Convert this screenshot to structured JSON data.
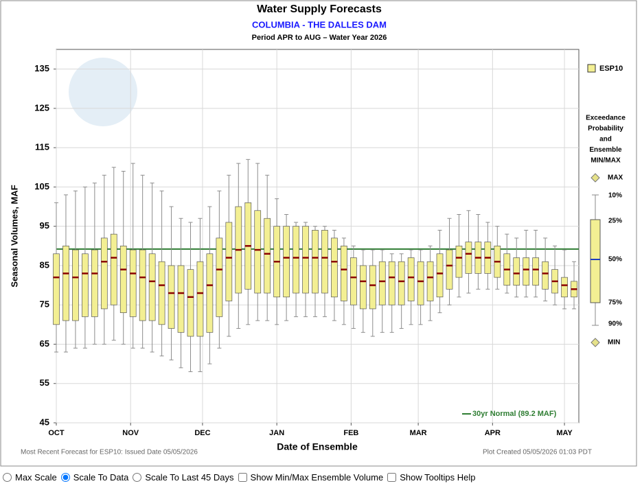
{
  "chart_data": {
    "type": "boxplot",
    "title": "Water Supply Forecasts",
    "subtitle": "COLUMBIA - THE DALLES DAM",
    "period": "Period  APR to AUG  –  Water Year 2026",
    "y_label": "Seasonal Volumes, MAF",
    "x_label": "Date of Ensemble",
    "footer_left": "Most Recent Forecast for ESP10: Issued Date 05/05/2026",
    "footer_right": "Plot Created  05/05/2026 01:03 PDT",
    "xlim": [
      0,
      218
    ],
    "xticks": [
      {
        "value": 0,
        "label": "OCT"
      },
      {
        "value": 31,
        "label": "NOV"
      },
      {
        "value": 61,
        "label": "DEC"
      },
      {
        "value": 92,
        "label": "JAN"
      },
      {
        "value": 123,
        "label": "FEB"
      },
      {
        "value": 151,
        "label": "MAR"
      },
      {
        "value": 182,
        "label": "APR"
      },
      {
        "value": 212,
        "label": "MAY"
      }
    ],
    "ylim": [
      45,
      140
    ],
    "yticks": [
      45,
      55,
      65,
      75,
      85,
      95,
      105,
      115,
      125,
      135
    ],
    "grid": true,
    "box_color": "#f3ef93",
    "whisker_color": "#8c8c8c",
    "median_color": "#8b0000",
    "legend_name": "ESP10",
    "legend_title": [
      "Exceedance",
      "Probability",
      "and",
      "Ensemble",
      "MIN/MAX"
    ],
    "legend_max": "MAX",
    "legend_min": "MIN",
    "legend_median_color": "#1f3fbf",
    "normal": {
      "value": 89.2,
      "label": "30yr Normal (89.2 MAF)",
      "color": "#2e7d32"
    },
    "x": [
      0,
      4,
      8,
      12,
      16,
      20,
      24,
      28,
      32,
      36,
      40,
      44,
      48,
      52,
      56,
      60,
      64,
      68,
      72,
      76,
      80,
      84,
      88,
      92,
      96,
      100,
      104,
      108,
      112,
      116,
      120,
      124,
      128,
      132,
      136,
      140,
      144,
      148,
      152,
      156,
      160,
      164,
      168,
      172,
      176,
      180,
      184,
      188,
      192,
      196,
      200,
      204,
      208,
      212,
      216
    ],
    "series": [
      {
        "name": "10%",
        "values": [
          101,
          103,
          104,
          105,
          106,
          108,
          110,
          109,
          111,
          108,
          106,
          104,
          100,
          97,
          96,
          97,
          100,
          104,
          108,
          111,
          112,
          111,
          108,
          102,
          98,
          96,
          96,
          95,
          95,
          94,
          92,
          90,
          89,
          89,
          89,
          88,
          88,
          89,
          89,
          90,
          94,
          97,
          98,
          99,
          98,
          96,
          95,
          93,
          92,
          94,
          94,
          92,
          90,
          89,
          86
        ]
      },
      {
        "name": "25%",
        "values": [
          88,
          90,
          89,
          88,
          89,
          92,
          93,
          90,
          89,
          89,
          88,
          86,
          85,
          85,
          84,
          86,
          88,
          92,
          96,
          100,
          101,
          99,
          97,
          95,
          95,
          95,
          95,
          94,
          94,
          92,
          90,
          87,
          85,
          85,
          86,
          86,
          86,
          87,
          86,
          86,
          88,
          89,
          90,
          91,
          91,
          91,
          90,
          88,
          87,
          87,
          87,
          86,
          84,
          82,
          81
        ]
      },
      {
        "name": "50%",
        "values": [
          82,
          83,
          82,
          83,
          83,
          86,
          87,
          84,
          83,
          82,
          81,
          80,
          78,
          78,
          77,
          78,
          80,
          84,
          87,
          89,
          90,
          89,
          88,
          86,
          87,
          87,
          87,
          87,
          87,
          86,
          84,
          82,
          81,
          80,
          81,
          82,
          81,
          82,
          81,
          82,
          83,
          85,
          87,
          88,
          87,
          87,
          86,
          84,
          83,
          84,
          84,
          83,
          81,
          80,
          79
        ]
      },
      {
        "name": "75%",
        "values": [
          70,
          71,
          71,
          72,
          72,
          74,
          75,
          73,
          72,
          71,
          71,
          70,
          69,
          68,
          67,
          67,
          68,
          72,
          76,
          78,
          79,
          78,
          78,
          77,
          77,
          78,
          78,
          78,
          78,
          77,
          76,
          75,
          74,
          74,
          75,
          75,
          75,
          76,
          75,
          76,
          77,
          79,
          82,
          83,
          83,
          83,
          82,
          80,
          80,
          80,
          80,
          79,
          78,
          77,
          77
        ]
      },
      {
        "name": "90%",
        "values": [
          63,
          63,
          64,
          64,
          65,
          65,
          66,
          65,
          64,
          64,
          63,
          62,
          61,
          59,
          58,
          58,
          60,
          64,
          67,
          69,
          70,
          71,
          71,
          70,
          71,
          72,
          72,
          72,
          72,
          71,
          70,
          69,
          68,
          67,
          68,
          68,
          69,
          70,
          70,
          71,
          73,
          75,
          77,
          78,
          79,
          79,
          79,
          78,
          77,
          77,
          77,
          76,
          75,
          74,
          74
        ]
      }
    ]
  },
  "controls": [
    {
      "kind": "radio",
      "label": "Max Scale",
      "checked": false
    },
    {
      "kind": "radio",
      "label": "Scale To Data",
      "checked": true
    },
    {
      "kind": "radio",
      "label": "Scale To Last 45 Days",
      "checked": false
    },
    {
      "kind": "checkbox",
      "label": "Show Min/Max Ensemble Volume",
      "checked": false
    },
    {
      "kind": "checkbox",
      "label": "Show Tooltips Help",
      "checked": false
    }
  ]
}
